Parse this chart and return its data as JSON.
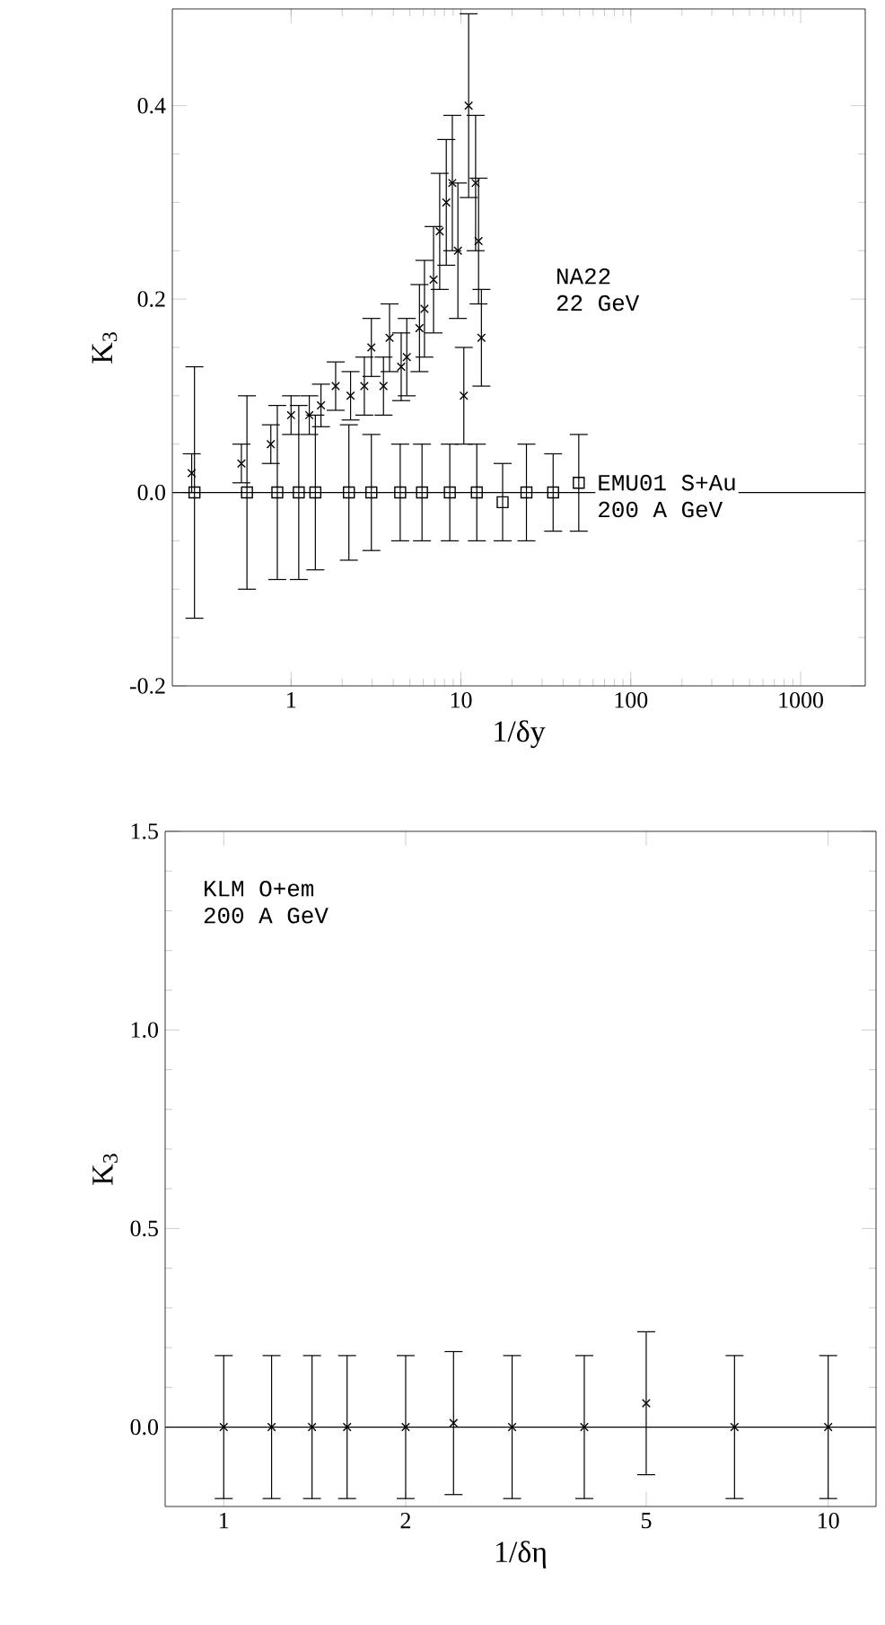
{
  "chart_data": [
    {
      "type": "scatter",
      "xlabel": "1/δy",
      "ylabel": "K$_{3}$",
      "log": "x",
      "xlim": [
        0.2,
        2400
      ],
      "ylim": [
        -0.2,
        0.5
      ],
      "xticks": [
        1,
        10,
        100,
        1000
      ],
      "yticks": [
        {
          "value": -0.2,
          "label": "-0.2"
        },
        {
          "value": 0,
          "label": "0.0"
        },
        {
          "value": 0.2,
          "label": "0.2"
        },
        {
          "value": 0.4,
          "label": "0.4"
        }
      ],
      "ref_lines": [
        {
          "axis": "y",
          "value": 0
        }
      ],
      "annotations": [
        "22 GeV",
        "200 A GeV"
      ],
      "series": [
        {
          "name": "NA22",
          "color": "#000000",
          "marker": "cross",
          "x": [
            0.26,
            0.51,
            0.76,
            1.0,
            1.28,
            1.5,
            1.83,
            2.24,
            2.7,
            2.97,
            3.5,
            3.8,
            4.45,
            4.8,
            5.7,
            6.1,
            6.9,
            7.5,
            8.2,
            8.9,
            9.6,
            10.4,
            11.1,
            12.2,
            12.7,
            13.2
          ],
          "values": [
            0.02,
            0.03,
            0.05,
            0.08,
            0.08,
            0.09,
            0.11,
            0.1,
            0.11,
            0.15,
            0.11,
            0.16,
            0.13,
            0.14,
            0.17,
            0.19,
            0.22,
            0.27,
            0.3,
            0.32,
            0.25,
            0.1,
            0.4,
            0.32,
            0.26,
            0.16
          ],
          "errors": [
            0.02,
            0.02,
            0.02,
            0.02,
            0.02,
            0.022,
            0.025,
            0.025,
            0.03,
            0.03,
            0.03,
            0.035,
            0.035,
            0.04,
            0.045,
            0.05,
            0.055,
            0.06,
            0.065,
            0.07,
            0.07,
            0.05,
            0.095,
            0.07,
            0.065,
            0.05
          ]
        },
        {
          "name": "EMU01 S+Au",
          "color": "#000000",
          "marker": "square",
          "x": [
            0.27,
            0.55,
            0.83,
            1.11,
            1.39,
            2.19,
            2.97,
            4.39,
            5.9,
            8.6,
            12.4,
            17.6,
            24.3,
            34.9,
            49.4
          ],
          "values": [
            0.0,
            0.0,
            0.0,
            0.0,
            0.0,
            0.0,
            0.0,
            0.0,
            0.0,
            0.0,
            0.0,
            -0.01,
            0.0,
            0.0,
            0.01
          ],
          "errors": [
            0.13,
            0.1,
            0.09,
            0.09,
            0.08,
            0.07,
            0.06,
            0.05,
            0.05,
            0.05,
            0.05,
            0.04,
            0.05,
            0.04,
            0.05
          ]
        }
      ]
    },
    {
      "type": "scatter",
      "xlabel": "1/δη",
      "ylabel": "K$_{3}$",
      "log": "x",
      "xlim": [
        0.8,
        12
      ],
      "ylim": [
        -0.2,
        1.5
      ],
      "xticks": [
        1,
        2,
        5,
        10
      ],
      "yticks": [
        {
          "value": 0,
          "label": "0.0"
        },
        {
          "value": 0.5,
          "label": "0.5"
        },
        {
          "value": 1.0,
          "label": "1.0"
        },
        {
          "value": 1.5,
          "label": "1.5"
        }
      ],
      "ref_lines": [
        {
          "axis": "y",
          "value": 0
        }
      ],
      "annotations": [
        "200 A GeV"
      ],
      "series": [
        {
          "name": "KLM O+em",
          "color": "#000000",
          "marker": "cross",
          "x": [
            1.0,
            1.2,
            1.4,
            1.6,
            2.0,
            2.4,
            3.0,
            3.95,
            5.0,
            7.0,
            10.0
          ],
          "values": [
            0.0,
            0.0,
            0.0,
            0.0,
            0.0,
            0.01,
            0.0,
            0.0,
            0.06,
            0.0,
            0.0
          ],
          "errors": [
            0.18,
            0.18,
            0.18,
            0.18,
            0.18,
            0.18,
            0.18,
            0.18,
            0.18,
            0.18,
            0.18
          ]
        }
      ]
    }
  ]
}
